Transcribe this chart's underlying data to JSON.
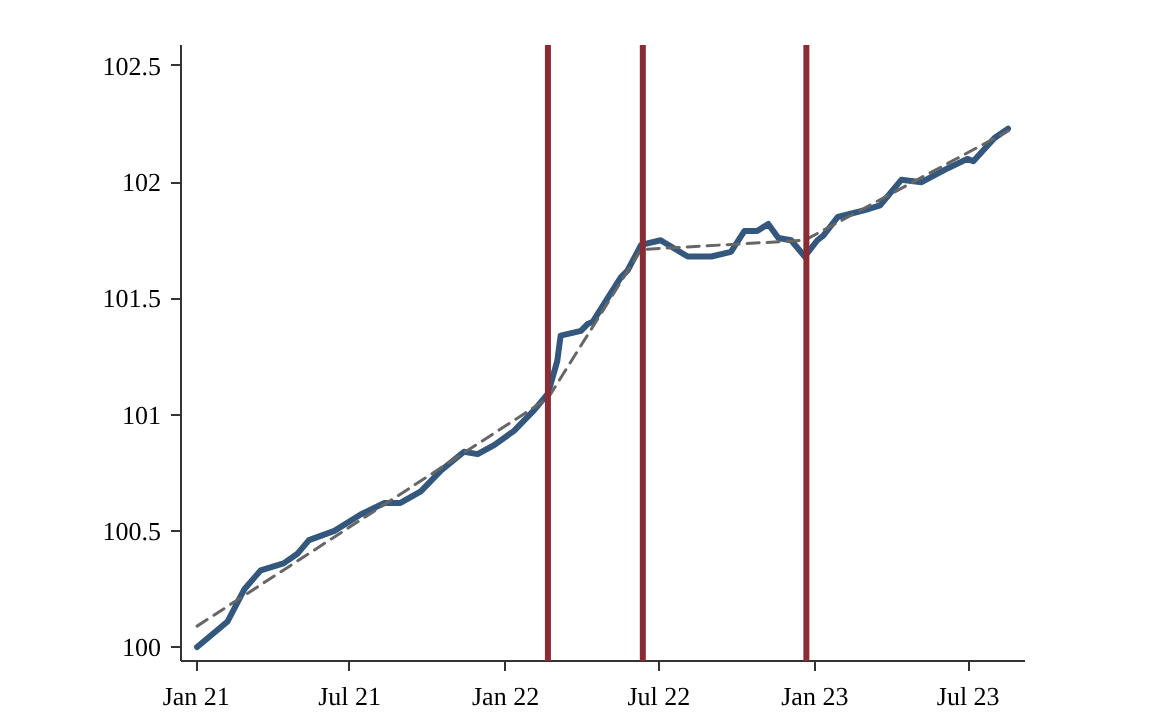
{
  "chart_data": {
    "type": "line",
    "xlim": [
      "2020-12-14",
      "2023-09-06"
    ],
    "ylim": [
      99.94,
      102.59
    ],
    "xticks": [
      {
        "value": "2021-01-01",
        "label": "Jan 21"
      },
      {
        "value": "2021-07-01",
        "label": "Jul 21"
      },
      {
        "value": "2022-01-01",
        "label": "Jan 22"
      },
      {
        "value": "2022-07-01",
        "label": "Jul 22"
      },
      {
        "value": "2023-01-01",
        "label": "Jan 23"
      },
      {
        "value": "2023-07-01",
        "label": "Jul 23"
      }
    ],
    "yticks": [
      100,
      100.5,
      101,
      101.5,
      102,
      102.5
    ],
    "grid": false,
    "series": [
      {
        "color": "#34587d",
        "line_style": "solid",
        "x": [
          "2021-01-02",
          "2021-02-07",
          "2021-02-27",
          "2021-03-18",
          "2021-04-14",
          "2021-04-30",
          "2021-05-14",
          "2021-06-13",
          "2021-07-14",
          "2021-08-11",
          "2021-08-30",
          "2021-09-23",
          "2021-10-17",
          "2021-11-13",
          "2021-11-29",
          "2021-12-19",
          "2022-01-11",
          "2022-02-04",
          "2022-02-20",
          "2022-03-03",
          "2022-03-07",
          "2022-03-31",
          "2022-04-08",
          "2022-04-14",
          "2022-05-17",
          "2022-05-25",
          "2022-06-10",
          "2022-07-03",
          "2022-08-04",
          "2022-09-01",
          "2022-09-24",
          "2022-10-10",
          "2022-10-25",
          "2022-11-07",
          "2022-11-19",
          "2022-12-04",
          "2022-12-20",
          "2023-01-04",
          "2023-01-11",
          "2023-01-28",
          "2023-03-01",
          "2023-03-19",
          "2023-04-13",
          "2023-05-07",
          "2023-06-07",
          "2023-06-30",
          "2023-07-07",
          "2023-08-01",
          "2023-08-17"
        ],
        "values": [
          100.0,
          100.11,
          100.25,
          100.33,
          100.36,
          100.4,
          100.46,
          100.5,
          100.57,
          100.62,
          100.62,
          100.67,
          100.76,
          100.84,
          100.83,
          100.87,
          100.93,
          101.02,
          101.09,
          101.23,
          101.34,
          101.36,
          101.39,
          101.4,
          101.59,
          101.62,
          101.73,
          101.75,
          101.68,
          101.68,
          101.7,
          101.79,
          101.79,
          101.82,
          101.76,
          101.75,
          101.68,
          101.75,
          101.77,
          101.85,
          101.88,
          101.9,
          102.01,
          102.0,
          102.06,
          102.1,
          102.09,
          102.19,
          102.23
        ]
      },
      {
        "color": "#666666",
        "line_style": "dashed",
        "x": [
          "2021-01-02",
          "2022-02-20",
          "2022-06-10",
          "2022-12-20",
          "2023-08-17"
        ],
        "values": [
          100.09,
          101.07,
          101.71,
          101.75,
          102.22
        ]
      }
    ],
    "ref_lines": [
      {
        "axis": "x",
        "value": "2022-02-20",
        "color": "#8b2c35"
      },
      {
        "axis": "x",
        "value": "2022-06-12",
        "color": "#8b2c35"
      },
      {
        "axis": "x",
        "value": "2022-12-22",
        "color": "#8b2c35"
      }
    ]
  }
}
